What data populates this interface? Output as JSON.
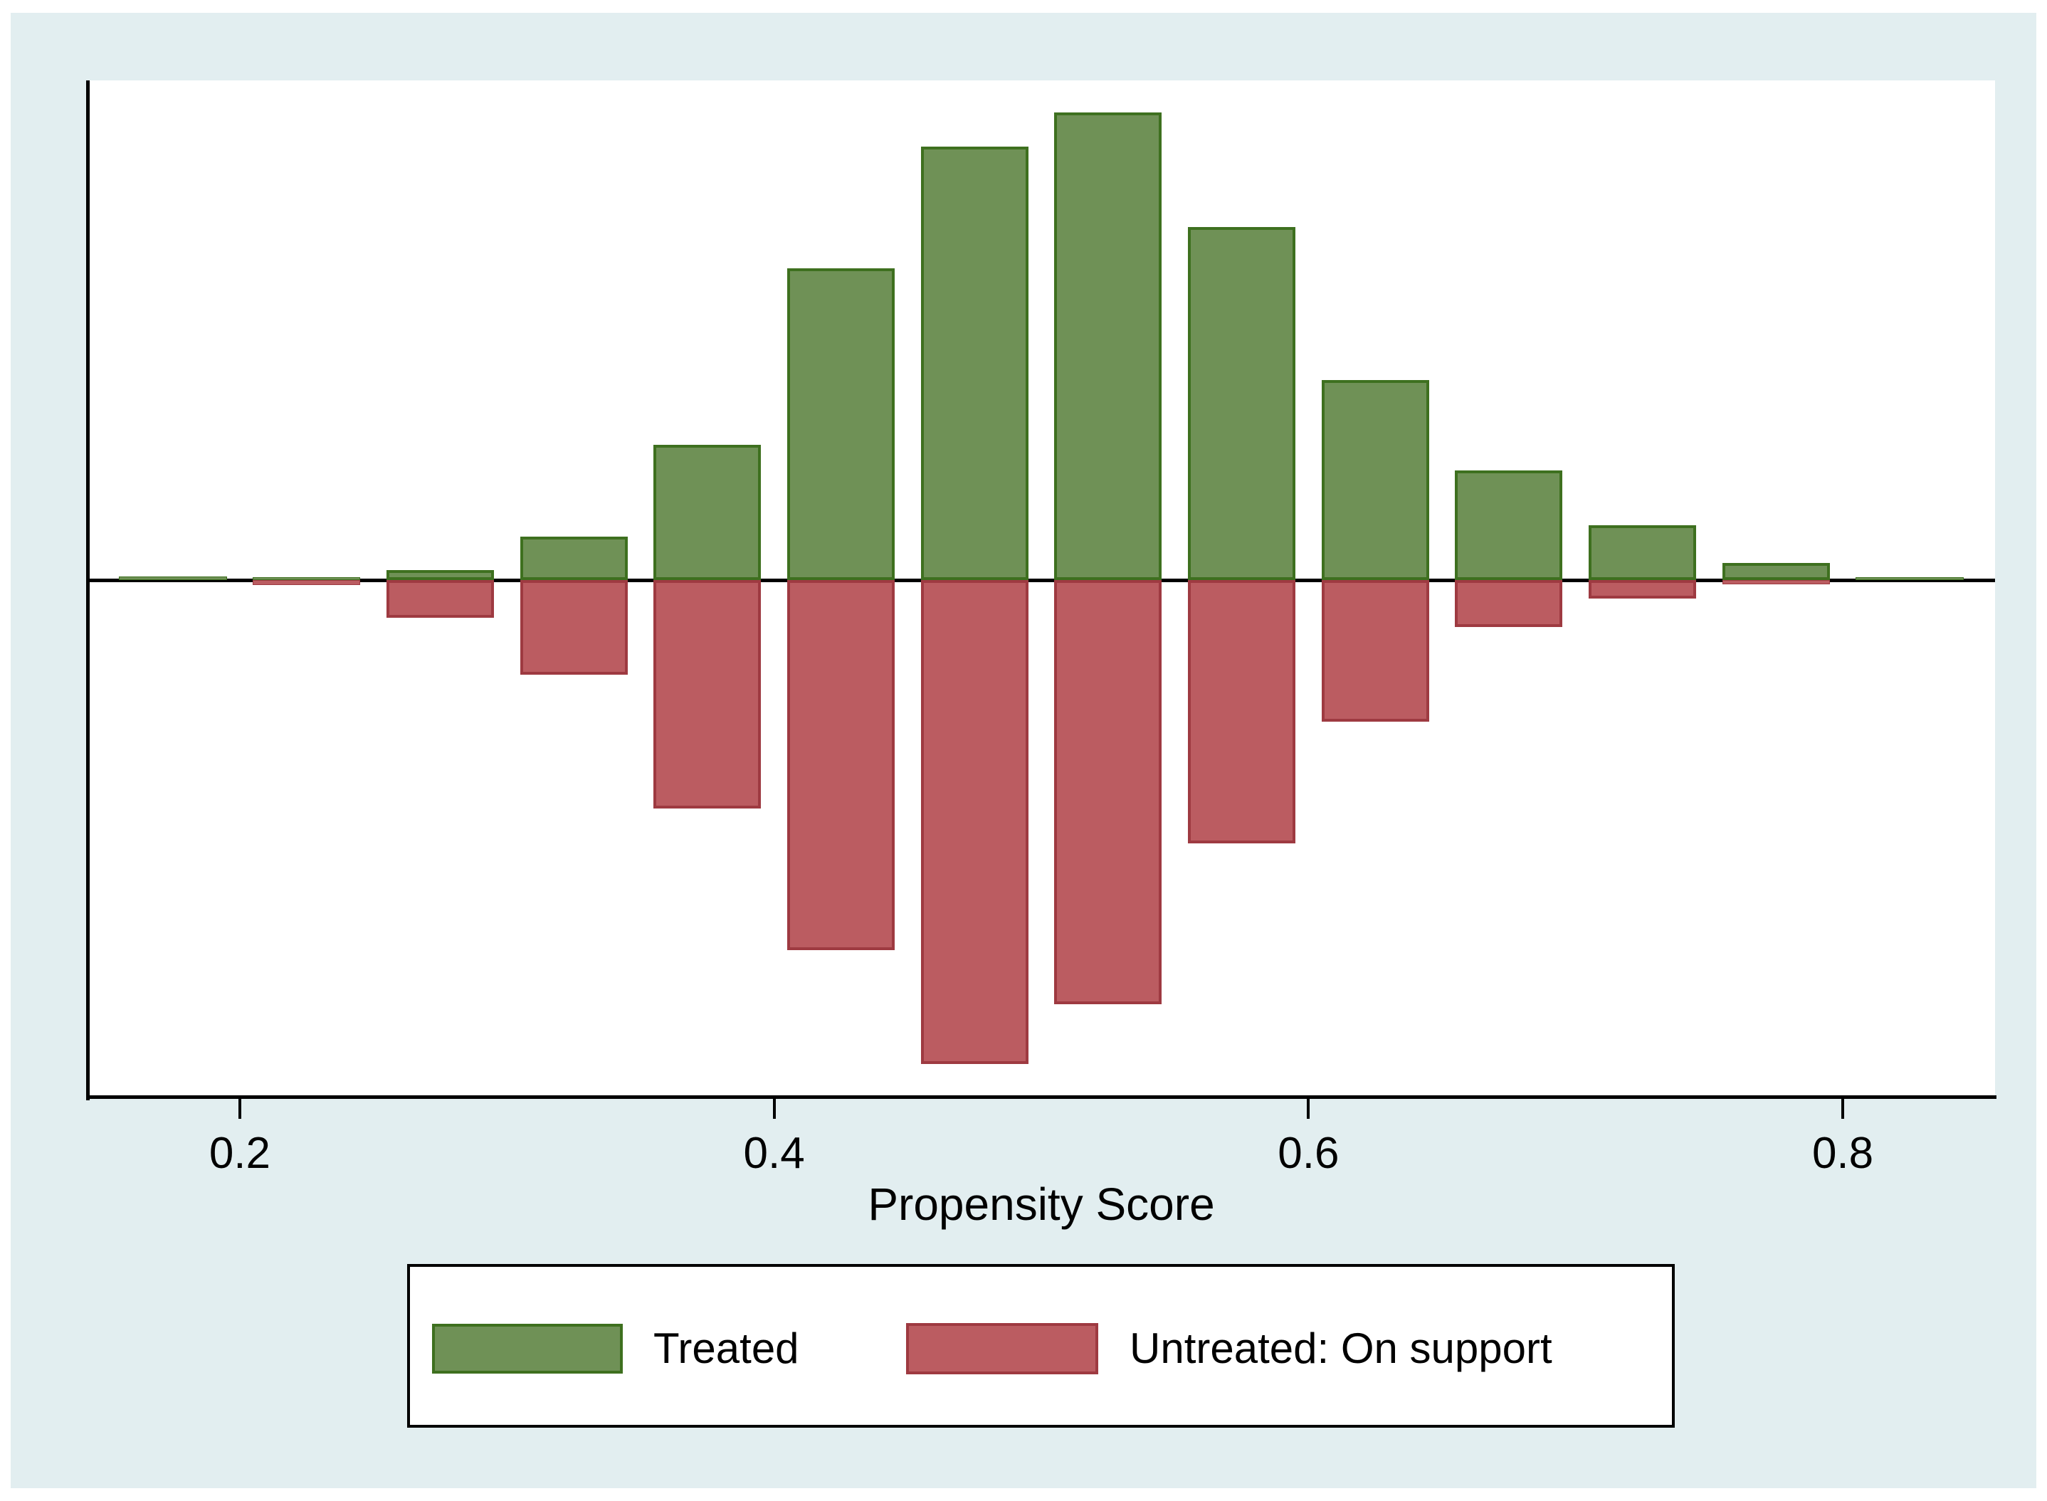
{
  "figure": {
    "background_color": "#ffffff",
    "region_color": "#e2eef0",
    "axis_color": "#000000"
  },
  "chart_data": {
    "type": "bar",
    "subtype": "mirrored-histogram",
    "title": "",
    "xlabel": "Propensity Score",
    "ylabel": "",
    "grid": false,
    "legend_position": "bottom",
    "xlim": [
      0.143,
      0.857
    ],
    "ylim": [
      -4.82,
      4.66
    ],
    "bin_width": 0.05,
    "bar_width": 0.0403,
    "x_ticks": [
      0.2,
      0.4,
      0.6,
      0.8
    ],
    "x_tick_labels": [
      "0.2",
      "0.4",
      "0.6",
      "0.8"
    ],
    "bin_centers": [
      0.175,
      0.225,
      0.275,
      0.325,
      0.375,
      0.425,
      0.475,
      0.525,
      0.575,
      0.625,
      0.675,
      0.725,
      0.775,
      0.825
    ],
    "series": [
      {
        "name": "Treated",
        "direction": "up",
        "fill": "#6f9156",
        "border": "#3e701f",
        "values": [
          0.033,
          0.027,
          0.093,
          0.405,
          1.261,
          2.906,
          4.041,
          4.36,
          3.291,
          1.865,
          1.022,
          0.511,
          0.159,
          0.027
        ]
      },
      {
        "name": "Untreated: On support",
        "direction": "down",
        "fill": "#bb5c61",
        "border": "#9e3a41",
        "values": [
          0.0,
          0.046,
          0.352,
          0.883,
          2.13,
          3.451,
          4.512,
          3.955,
          2.455,
          1.32,
          0.438,
          0.173,
          0.04,
          0.0
        ]
      }
    ]
  },
  "legend": {
    "items": [
      {
        "label": "Treated",
        "fill": "#6f9156",
        "border": "#3e701f"
      },
      {
        "label": "Untreated: On support",
        "fill": "#bb5c61",
        "border": "#9e3a41"
      }
    ]
  }
}
